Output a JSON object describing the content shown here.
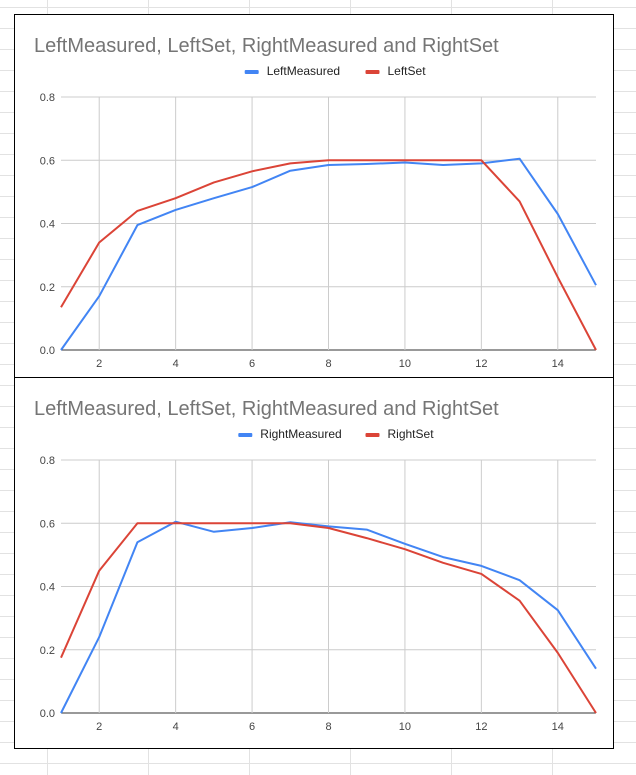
{
  "chart_data": [
    {
      "type": "line",
      "title": "LeftMeasured, LeftSet, RightMeasured and RightSet",
      "xlabel": "",
      "ylabel": "",
      "xlim": [
        1,
        15
      ],
      "ylim": [
        0,
        0.8
      ],
      "x_ticks": [
        "2",
        "4",
        "6",
        "8",
        "10",
        "12",
        "14"
      ],
      "y_ticks": [
        "0.0",
        "0.2",
        "0.4",
        "0.6",
        "0.8"
      ],
      "grid": true,
      "legend_position": "top",
      "x": [
        1,
        2,
        3,
        4,
        5,
        6,
        7,
        8,
        9,
        10,
        11,
        12,
        13,
        14,
        15
      ],
      "series": [
        {
          "name": "LeftMeasured",
          "color": "#4285f4",
          "values": [
            0.0,
            0.17,
            0.395,
            0.443,
            0.48,
            0.515,
            0.567,
            0.585,
            0.588,
            0.593,
            0.585,
            0.59,
            0.605,
            0.43,
            0.205
          ]
        },
        {
          "name": "LeftSet",
          "color": "#db4437",
          "values": [
            0.135,
            0.34,
            0.44,
            0.48,
            0.53,
            0.565,
            0.59,
            0.6,
            0.6,
            0.6,
            0.6,
            0.6,
            0.47,
            0.23,
            0.0
          ]
        }
      ]
    },
    {
      "type": "line",
      "title": "LeftMeasured, LeftSet, RightMeasured and RightSet",
      "xlabel": "",
      "ylabel": "",
      "xlim": [
        1,
        15
      ],
      "ylim": [
        0,
        0.8
      ],
      "x_ticks": [
        "2",
        "4",
        "6",
        "8",
        "10",
        "12",
        "14"
      ],
      "y_ticks": [
        "0.0",
        "0.2",
        "0.4",
        "0.6",
        "0.8"
      ],
      "grid": true,
      "legend_position": "top",
      "x": [
        1,
        2,
        3,
        4,
        5,
        6,
        7,
        8,
        9,
        10,
        11,
        12,
        13,
        14,
        15
      ],
      "series": [
        {
          "name": "RightMeasured",
          "color": "#4285f4",
          "values": [
            0.0,
            0.24,
            0.54,
            0.605,
            0.573,
            0.585,
            0.603,
            0.59,
            0.58,
            0.535,
            0.493,
            0.465,
            0.42,
            0.325,
            0.14
          ]
        },
        {
          "name": "RightSet",
          "color": "#db4437",
          "values": [
            0.175,
            0.45,
            0.6,
            0.6,
            0.6,
            0.6,
            0.6,
            0.585,
            0.553,
            0.518,
            0.475,
            0.44,
            0.355,
            0.19,
            0.0
          ]
        }
      ]
    }
  ]
}
